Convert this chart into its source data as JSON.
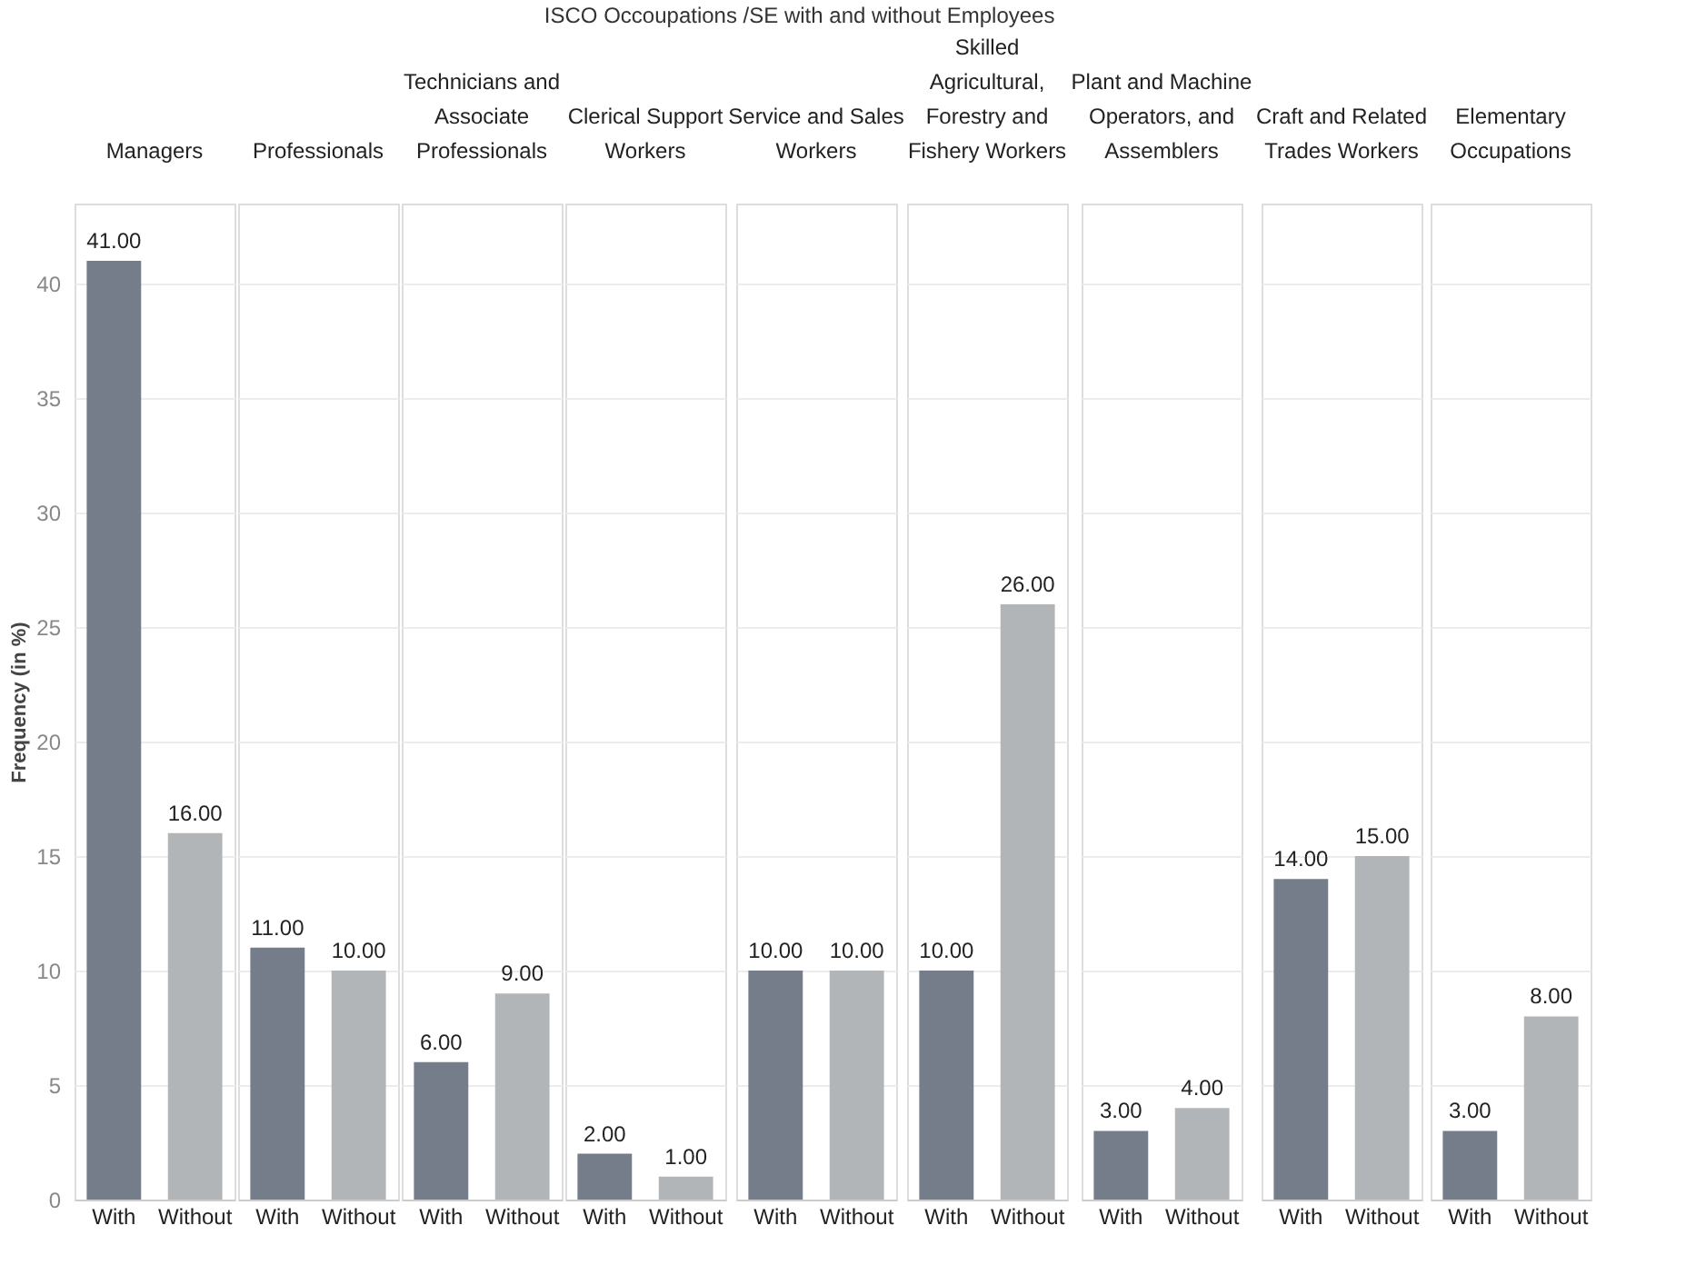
{
  "chart_data": [
    {
      "type": "bar",
      "title": "Managers",
      "annotations": [
        "ISCO Occoupations /SE with and without Employees"
      ],
      "ylabel": "Frequency (in %)",
      "categories": [
        "With",
        "Without"
      ],
      "values": [
        41,
        16
      ],
      "colors": [
        "#767d8a",
        "#b2b5b7"
      ],
      "value_labels": [
        "41.00",
        "16.00"
      ],
      "ylim": [
        0,
        43.5
      ],
      "yticks": [
        0,
        5,
        10,
        15,
        20,
        25,
        30,
        35,
        40
      ],
      "grid": "y"
    },
    {
      "type": "bar",
      "title": "Professionals",
      "categories": [
        "With",
        "Without"
      ],
      "values": [
        11,
        10
      ],
      "colors": [
        "#767d8a",
        "#b2b5b7"
      ],
      "value_labels": [
        "11.00",
        "10.00"
      ],
      "ylim": [
        0,
        43.5
      ],
      "yticks": [
        0,
        5,
        10,
        15,
        20,
        25,
        30,
        35,
        40
      ],
      "grid": "y",
      "tick_labels": "x"
    },
    {
      "type": "bar",
      "title": "Technicians and Associate Professionals",
      "categories": [
        "With",
        "Without"
      ],
      "values": [
        6,
        9
      ],
      "colors": [
        "#767d8a",
        "#b2b5b7"
      ],
      "value_labels": [
        "6.00",
        "9.00"
      ],
      "ylim": [
        0,
        43.5
      ],
      "yticks": [
        0,
        5,
        10,
        15,
        20,
        25,
        30,
        35,
        40
      ],
      "grid": "y",
      "tick_labels": "x"
    },
    {
      "type": "bar",
      "title": "Clerical Support Workers",
      "categories": [
        "With",
        "Without"
      ],
      "values": [
        2,
        1
      ],
      "colors": [
        "#767d8a",
        "#b2b5b7"
      ],
      "value_labels": [
        "2.00",
        "1.00"
      ],
      "ylim": [
        0,
        43.5
      ],
      "yticks": [
        0,
        5,
        10,
        15,
        20,
        25,
        30,
        35,
        40
      ],
      "grid": "y",
      "tick_labels": "x"
    },
    {
      "type": "bar",
      "title": "Service and Sales Workers",
      "categories": [
        "With",
        "Without"
      ],
      "values": [
        10,
        10
      ],
      "colors": [
        "#767d8a",
        "#b2b5b7"
      ],
      "value_labels": [
        "10.00",
        "10.00"
      ],
      "ylim": [
        0,
        43.5
      ],
      "yticks": [
        0,
        5,
        10,
        15,
        20,
        25,
        30,
        35,
        40
      ],
      "grid": "y",
      "tick_labels": "x"
    },
    {
      "type": "bar",
      "title": "Skilled Agricultural, Forestry and Fishery Workers",
      "categories": [
        "With",
        "Without"
      ],
      "values": [
        10,
        26
      ],
      "colors": [
        "#767d8a",
        "#b2b5b7"
      ],
      "value_labels": [
        "10.00",
        "26.00"
      ],
      "ylim": [
        0,
        43.5
      ],
      "yticks": [
        0,
        5,
        10,
        15,
        20,
        25,
        30,
        35,
        40
      ],
      "grid": "y",
      "tick_labels": "x"
    },
    {
      "type": "bar",
      "title": "Plant and Machine Operators, and Assemblers",
      "categories": [
        "With",
        "Without"
      ],
      "values": [
        3,
        4
      ],
      "colors": [
        "#767d8a",
        "#b2b5b7"
      ],
      "value_labels": [
        "3.00",
        "4.00"
      ],
      "ylim": [
        0,
        43.5
      ],
      "yticks": [
        0,
        5,
        10,
        15,
        20,
        25,
        30,
        35,
        40
      ],
      "grid": "y",
      "tick_labels": "x"
    },
    {
      "type": "bar",
      "title": "Craft and Related Trades Workers",
      "categories": [
        "With",
        "Without"
      ],
      "values": [
        14,
        15
      ],
      "colors": [
        "#767d8a",
        "#b2b5b7"
      ],
      "value_labels": [
        "14.00",
        "15.00"
      ],
      "ylim": [
        0,
        43.5
      ],
      "yticks": [
        0,
        5,
        10,
        15,
        20,
        25,
        30,
        35,
        40
      ],
      "grid": "y",
      "tick_labels": "x"
    },
    {
      "type": "bar",
      "title": "Elementary Occupations",
      "categories": [
        "With",
        "Without"
      ],
      "values": [
        3,
        8
      ],
      "colors": [
        "#767d8a",
        "#b2b5b7"
      ],
      "value_labels": [
        "3.00",
        "8.00"
      ],
      "ylim": [
        0,
        43.5
      ],
      "yticks": [
        0,
        5,
        10,
        15,
        20,
        25,
        30,
        35,
        40
      ],
      "grid": "y",
      "tick_labels": "x"
    }
  ]
}
